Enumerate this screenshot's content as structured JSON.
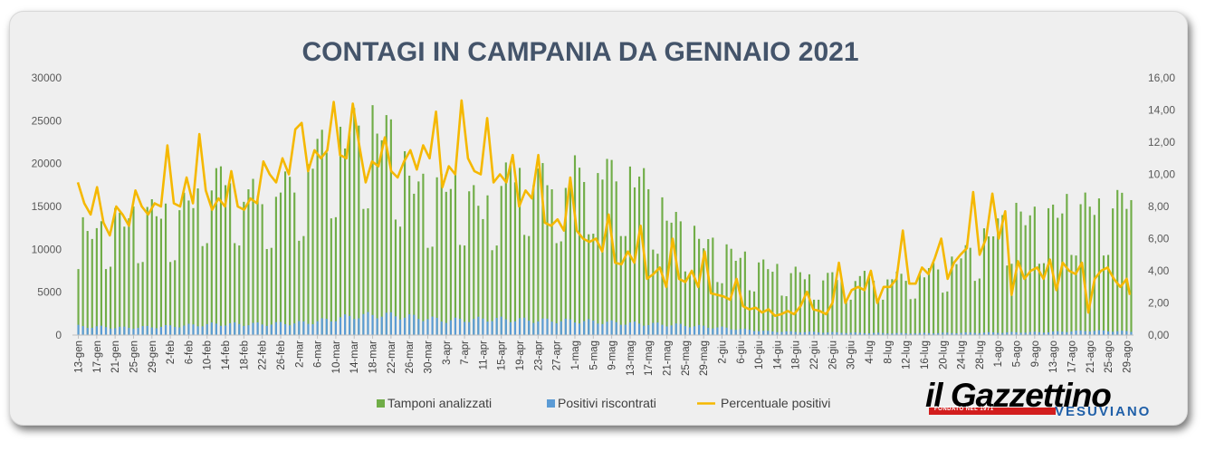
{
  "chart_data": {
    "type": "bar",
    "title": "CONTAGI IN CAMPANIA DA GENNAIO 2021",
    "xlabel": "",
    "ylabel": "",
    "ylim": [
      0,
      30000
    ],
    "y2lim": [
      0,
      16
    ],
    "y_ticks": [
      "0",
      "5000",
      "10000",
      "15000",
      "20000",
      "25000",
      "30000"
    ],
    "y2_ticks": [
      "0,00",
      "2,00",
      "4,00",
      "6,00",
      "8,00",
      "10,00",
      "12,00",
      "14,00",
      "16,00"
    ],
    "x_tick_labels": [
      "13-gen",
      "17-gen",
      "21-gen",
      "25-gen",
      "29-gen",
      "2-feb",
      "6-feb",
      "10-feb",
      "14-feb",
      "18-feb",
      "22-feb",
      "26-feb",
      "2-mar",
      "6-mar",
      "10-mar",
      "14-mar",
      "18-mar",
      "22-mar",
      "26-mar",
      "30-mar",
      "3-apr",
      "7-apr",
      "11-apr",
      "15-apr",
      "19-apr",
      "23-apr",
      "27-apr",
      "1-mag",
      "5-mag",
      "9-mag",
      "13-mag",
      "17-mag",
      "21-mag",
      "25-mag",
      "29-mag",
      "2-giu",
      "6-giu",
      "10-giu",
      "14-giu",
      "18-giu",
      "22-giu",
      "26-giu",
      "30-giu",
      "4-lug",
      "8-lug",
      "12-lug",
      "16-lug",
      "20-lug",
      "24-lug",
      "28-lug",
      "1-ago",
      "5-ago",
      "9-ago",
      "13-ago",
      "17-ago",
      "21-ago",
      "25-ago",
      "29-ago"
    ],
    "series": [
      {
        "name": "Tamponi analizzati",
        "type": "bar",
        "axis": "left",
        "color": "#70ad47",
        "anchors": [
          [
            0,
            14000
          ],
          [
            4,
            13000
          ],
          [
            8,
            15000
          ],
          [
            12,
            15000
          ],
          [
            16,
            16000
          ],
          [
            20,
            15500
          ],
          [
            24,
            17000
          ],
          [
            28,
            19500
          ],
          [
            32,
            20500
          ],
          [
            36,
            18500
          ],
          [
            40,
            18000
          ],
          [
            44,
            19000
          ],
          [
            48,
            20000
          ],
          [
            52,
            24000
          ],
          [
            56,
            25000
          ],
          [
            60,
            26500
          ],
          [
            64,
            27000
          ],
          [
            68,
            26000
          ],
          [
            72,
            20000
          ],
          [
            76,
            18500
          ],
          [
            80,
            19500
          ],
          [
            84,
            19000
          ],
          [
            88,
            16000
          ],
          [
            92,
            20000
          ],
          [
            96,
            21500
          ],
          [
            100,
            20500
          ],
          [
            104,
            19500
          ],
          [
            108,
            21000
          ],
          [
            112,
            21500
          ],
          [
            116,
            21000
          ],
          [
            120,
            21000
          ],
          [
            124,
            19000
          ],
          [
            128,
            15500
          ],
          [
            132,
            13500
          ],
          [
            136,
            12000
          ],
          [
            140,
            11000
          ],
          [
            144,
            10000
          ],
          [
            148,
            9000
          ],
          [
            152,
            8500
          ],
          [
            156,
            8000
          ],
          [
            160,
            7500
          ],
          [
            164,
            7500
          ],
          [
            168,
            7500
          ],
          [
            172,
            7500
          ],
          [
            176,
            7500
          ],
          [
            180,
            7500
          ],
          [
            184,
            8000
          ],
          [
            188,
            9000
          ],
          [
            192,
            10000
          ],
          [
            196,
            12000
          ],
          [
            200,
            14000
          ],
          [
            204,
            15500
          ],
          [
            208,
            15000
          ],
          [
            212,
            15500
          ],
          [
            216,
            17000
          ],
          [
            220,
            16500
          ],
          [
            224,
            17000
          ],
          [
            229,
            17500
          ]
        ]
      },
      {
        "name": "Positivi riscontrati",
        "type": "bar",
        "axis": "left",
        "color": "#5b9bd5",
        "anchors": [
          [
            0,
            1200
          ],
          [
            10,
            1000
          ],
          [
            20,
            1200
          ],
          [
            30,
            1500
          ],
          [
            40,
            1500
          ],
          [
            50,
            1700
          ],
          [
            60,
            2600
          ],
          [
            66,
            2800
          ],
          [
            72,
            2500
          ],
          [
            80,
            2000
          ],
          [
            90,
            2200
          ],
          [
            100,
            2000
          ],
          [
            110,
            1900
          ],
          [
            120,
            1600
          ],
          [
            130,
            1400
          ],
          [
            140,
            1000
          ],
          [
            150,
            500
          ],
          [
            160,
            400
          ],
          [
            170,
            300
          ],
          [
            180,
            250
          ],
          [
            190,
            300
          ],
          [
            200,
            350
          ],
          [
            210,
            400
          ],
          [
            220,
            600
          ],
          [
            229,
            500
          ]
        ]
      },
      {
        "name": "Percentuale positivi",
        "type": "line",
        "axis": "right",
        "color": "#f5b800",
        "anchors": [
          [
            0,
            9.5
          ],
          [
            2,
            8.2
          ],
          [
            4,
            7.5
          ],
          [
            6,
            9.2
          ],
          [
            8,
            7.0
          ],
          [
            10,
            6.2
          ],
          [
            12,
            8.0
          ],
          [
            14,
            7.5
          ],
          [
            16,
            6.8
          ],
          [
            18,
            9.0
          ],
          [
            20,
            8.0
          ],
          [
            22,
            7.5
          ],
          [
            24,
            8.2
          ],
          [
            26,
            8.0
          ],
          [
            28,
            11.8
          ],
          [
            30,
            8.2
          ],
          [
            32,
            8.0
          ],
          [
            34,
            9.8
          ],
          [
            36,
            8.2
          ],
          [
            38,
            12.5
          ],
          [
            40,
            9.0
          ],
          [
            42,
            7.8
          ],
          [
            44,
            8.5
          ],
          [
            46,
            8.0
          ],
          [
            48,
            10.2
          ],
          [
            50,
            8.0
          ],
          [
            52,
            7.8
          ],
          [
            54,
            8.5
          ],
          [
            56,
            8.2
          ],
          [
            58,
            10.8
          ],
          [
            60,
            10.0
          ],
          [
            62,
            9.5
          ],
          [
            64,
            11.0
          ],
          [
            66,
            10.0
          ],
          [
            68,
            12.8
          ],
          [
            70,
            13.2
          ],
          [
            72,
            10.2
          ],
          [
            74,
            11.5
          ],
          [
            76,
            11.0
          ],
          [
            78,
            11.5
          ],
          [
            80,
            14.5
          ],
          [
            82,
            11.2
          ],
          [
            84,
            11.0
          ],
          [
            86,
            14.4
          ],
          [
            88,
            11.8
          ],
          [
            90,
            9.5
          ],
          [
            92,
            10.8
          ],
          [
            94,
            10.5
          ],
          [
            96,
            12.3
          ],
          [
            98,
            10.2
          ],
          [
            100,
            9.8
          ],
          [
            102,
            10.8
          ],
          [
            104,
            11.5
          ],
          [
            106,
            10.3
          ],
          [
            108,
            11.8
          ],
          [
            110,
            11.0
          ],
          [
            112,
            13.9
          ],
          [
            114,
            9.2
          ],
          [
            116,
            10.5
          ],
          [
            118,
            10.0
          ],
          [
            120,
            14.6
          ],
          [
            122,
            11.0
          ],
          [
            124,
            10.2
          ],
          [
            126,
            10.0
          ],
          [
            128,
            13.5
          ],
          [
            130,
            9.5
          ],
          [
            132,
            10.0
          ],
          [
            134,
            9.5
          ],
          [
            136,
            11.2
          ],
          [
            138,
            8.0
          ],
          [
            140,
            9.0
          ],
          [
            142,
            8.5
          ],
          [
            144,
            11.2
          ],
          [
            146,
            7.0
          ],
          [
            148,
            6.8
          ],
          [
            150,
            7.2
          ],
          [
            152,
            6.5
          ],
          [
            154,
            9.8
          ],
          [
            156,
            6.5
          ],
          [
            158,
            6.0
          ],
          [
            160,
            5.8
          ],
          [
            162,
            6.0
          ],
          [
            164,
            5.2
          ],
          [
            166,
            7.5
          ],
          [
            168,
            4.5
          ],
          [
            170,
            4.4
          ],
          [
            172,
            5.2
          ],
          [
            174,
            4.5
          ],
          [
            176,
            6.8
          ],
          [
            178,
            3.5
          ],
          [
            180,
            3.8
          ],
          [
            182,
            4.2
          ],
          [
            184,
            3.0
          ],
          [
            186,
            6.0
          ],
          [
            188,
            3.5
          ],
          [
            190,
            3.3
          ],
          [
            192,
            4.0
          ],
          [
            194,
            3.0
          ],
          [
            196,
            5.2
          ],
          [
            198,
            2.6
          ],
          [
            200,
            2.5
          ],
          [
            202,
            2.4
          ],
          [
            204,
            2.2
          ],
          [
            206,
            3.5
          ],
          [
            208,
            1.8
          ],
          [
            210,
            1.6
          ],
          [
            212,
            1.7
          ],
          [
            214,
            1.4
          ],
          [
            216,
            1.6
          ],
          [
            218,
            1.2
          ],
          [
            220,
            1.3
          ],
          [
            222,
            1.5
          ],
          [
            224,
            1.3
          ],
          [
            226,
            1.8
          ],
          [
            228,
            2.7
          ],
          [
            230,
            1.6
          ],
          [
            232,
            1.5
          ],
          [
            234,
            1.3
          ],
          [
            236,
            2.0
          ],
          [
            238,
            4.5
          ],
          [
            240,
            2.0
          ],
          [
            242,
            2.8
          ],
          [
            244,
            3.0
          ],
          [
            246,
            2.8
          ],
          [
            248,
            4.0
          ],
          [
            250,
            2.0
          ],
          [
            252,
            3.0
          ],
          [
            254,
            3.0
          ],
          [
            256,
            3.5
          ],
          [
            258,
            6.5
          ],
          [
            260,
            3.2
          ],
          [
            262,
            3.2
          ],
          [
            264,
            4.2
          ],
          [
            266,
            3.8
          ],
          [
            268,
            4.8
          ],
          [
            270,
            6.0
          ],
          [
            272,
            3.5
          ],
          [
            274,
            4.5
          ],
          [
            276,
            5.0
          ],
          [
            278,
            5.4
          ],
          [
            280,
            8.9
          ],
          [
            282,
            5.0
          ],
          [
            284,
            6.0
          ],
          [
            286,
            8.8
          ],
          [
            288,
            6.0
          ],
          [
            290,
            7.7
          ],
          [
            292,
            2.5
          ],
          [
            294,
            4.6
          ],
          [
            296,
            3.5
          ],
          [
            298,
            4.0
          ],
          [
            300,
            4.2
          ],
          [
            302,
            3.5
          ],
          [
            304,
            4.7
          ],
          [
            306,
            2.8
          ],
          [
            308,
            4.5
          ],
          [
            310,
            4.0
          ],
          [
            312,
            3.8
          ],
          [
            314,
            4.5
          ],
          [
            316,
            1.4
          ],
          [
            318,
            3.5
          ],
          [
            320,
            4.0
          ],
          [
            322,
            4.2
          ],
          [
            324,
            3.5
          ],
          [
            326,
            3.0
          ],
          [
            328,
            3.5
          ],
          [
            329,
            2.5
          ]
        ]
      }
    ],
    "legend": [
      "Tamponi analizzati",
      "Positivi riscontrati",
      "Percentuale positivi"
    ],
    "legend_position": "bottom",
    "grid": false
  },
  "logo": {
    "brand": "il Gazzettino",
    "founded": "FONDATO NEL 1971",
    "region": "VESUVIANO"
  }
}
